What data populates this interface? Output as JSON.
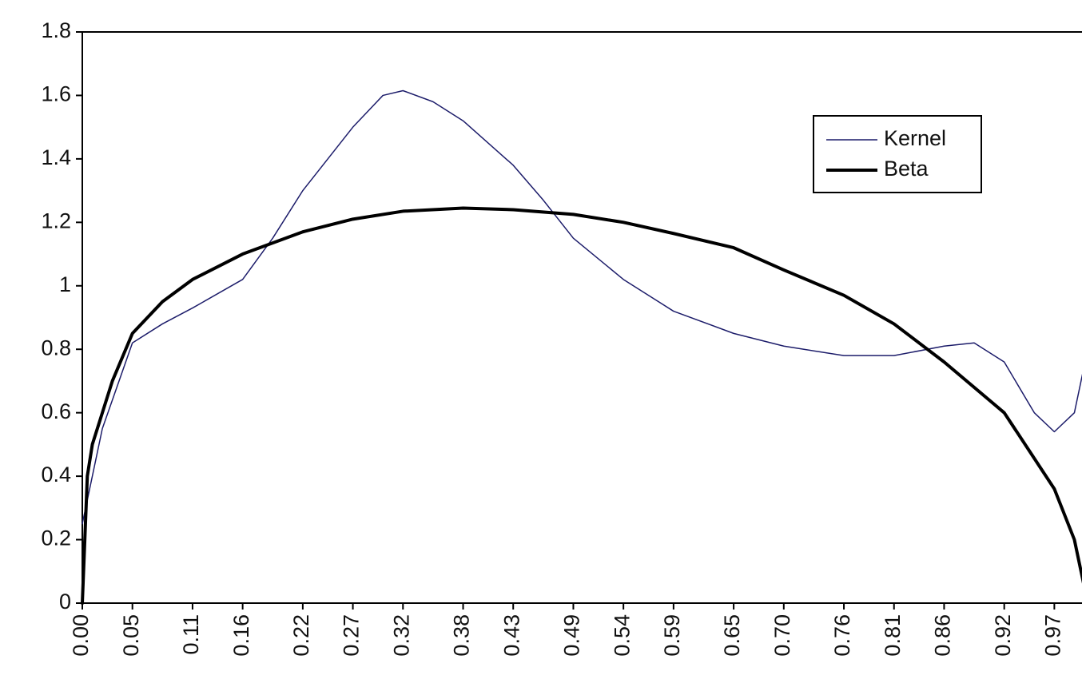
{
  "chart_data": {
    "type": "line",
    "xlim": [
      0,
      1
    ],
    "xticks": [
      {
        "value": 0,
        "label": "0.00"
      },
      {
        "value": 0.05,
        "label": "0.05"
      },
      0.11,
      0.16,
      0.22,
      0.27,
      0.32,
      0.38,
      0.43,
      0.49,
      0.54,
      0.59,
      0.65,
      {
        "value": 0.7,
        "label": "0.70"
      },
      0.76,
      0.81,
      0.86,
      0.92,
      0.97
    ],
    "ylim": [
      0,
      1.8
    ],
    "yticks": [
      0,
      0.2,
      0.4,
      0.6,
      0.8,
      1,
      1.2,
      1.4,
      1.6,
      1.8
    ],
    "legend": "upper right",
    "series": [
      {
        "name": "Kernel",
        "color": "#1c1c6a",
        "width": 1.5,
        "x": [
          0,
          0.02,
          0.05,
          0.08,
          0.11,
          0.16,
          0.19,
          0.22,
          0.27,
          0.3,
          0.32,
          0.35,
          0.38,
          0.43,
          0.46,
          0.49,
          0.54,
          0.59,
          0.65,
          0.7,
          0.76,
          0.81,
          0.86,
          0.89,
          0.92,
          0.95,
          0.97,
          0.99,
          1
        ],
        "values": [
          0.25,
          0.55,
          0.82,
          0.88,
          0.93,
          1.02,
          1.15,
          1.3,
          1.5,
          1.6,
          1.615,
          1.58,
          1.52,
          1.38,
          1.27,
          1.15,
          1.02,
          0.92,
          0.85,
          0.81,
          0.78,
          0.78,
          0.81,
          0.82,
          0.76,
          0.6,
          0.54,
          0.6,
          0.75
        ]
      },
      {
        "name": "Beta",
        "color": "#000000",
        "width": 4,
        "x": [
          0,
          0.005,
          0.01,
          0.02,
          0.03,
          0.05,
          0.08,
          0.11,
          0.16,
          0.22,
          0.27,
          0.32,
          0.38,
          0.43,
          0.49,
          0.54,
          0.59,
          0.65,
          0.7,
          0.76,
          0.81,
          0.86,
          0.92,
          0.97,
          0.99,
          1
        ],
        "values": [
          0,
          0.4,
          0.5,
          0.6,
          0.7,
          0.85,
          0.95,
          1.02,
          1.1,
          1.17,
          1.21,
          1.235,
          1.245,
          1.24,
          1.225,
          1.2,
          1.165,
          1.12,
          1.05,
          0.97,
          0.88,
          0.76,
          0.6,
          0.36,
          0.2,
          0.05
        ]
      }
    ]
  }
}
